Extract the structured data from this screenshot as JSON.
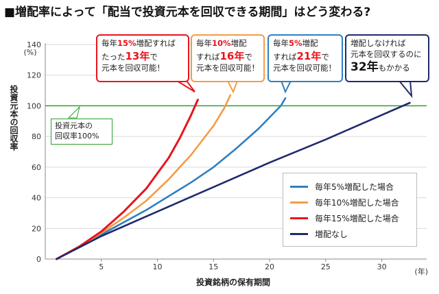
{
  "title": "■増配率によって「配当で投資元本を回収できる期間」はどう変わる?",
  "chart_data": {
    "type": "line",
    "xlabel": "投資銘柄の保有期間",
    "xunit": "(年)",
    "ylabel": "投資元本の回収率",
    "yunit": "(%)",
    "xlim": [
      0,
      34
    ],
    "ylim": [
      0,
      140
    ],
    "xticks": [
      5,
      10,
      15,
      20,
      25,
      30
    ],
    "yticks": [
      0,
      20,
      40,
      60,
      80,
      100,
      120,
      140
    ],
    "grid": "horizontal",
    "legend_position": "bottom-right",
    "reference_line": {
      "y": 100,
      "color": "#2ca02c"
    },
    "series": [
      {
        "name": "毎年5%増配した場合",
        "color": "#2e7fc1",
        "x": [
          1,
          3,
          5,
          7,
          9,
          11,
          13,
          15,
          17,
          19,
          21,
          21.4
        ],
        "y": [
          0,
          8,
          16,
          24,
          32,
          41,
          50,
          60,
          72,
          85,
          100,
          105
        ]
      },
      {
        "name": "毎年10%増配した場合",
        "color": "#f59b42",
        "x": [
          1,
          3,
          5,
          7,
          9,
          11,
          13,
          15,
          16,
          16.5
        ],
        "y": [
          0,
          8,
          17,
          27,
          38,
          52,
          68,
          87,
          99,
          107
        ]
      },
      {
        "name": "毎年15%増配した場合",
        "color": "#e8141c",
        "x": [
          1,
          3,
          5,
          7,
          9,
          11,
          12,
          13,
          13.6
        ],
        "y": [
          0,
          8,
          18,
          31,
          46,
          66,
          79,
          94,
          104
        ]
      },
      {
        "name": "増配なし",
        "color": "#1f2a6b",
        "x": [
          1,
          5,
          10,
          15,
          20,
          25,
          30,
          32.5
        ],
        "y": [
          0,
          15,
          31,
          47,
          63,
          78,
          94,
          102
        ]
      }
    ]
  },
  "callouts": [
    {
      "id": "c15",
      "color": "#e8141c",
      "parts": [
        [
          "毎年",
          ""
        ],
        [
          "15%",
          "red"
        ],
        [
          "増配すれば",
          ""
        ],
        [
          "\n",
          ""
        ],
        [
          "たった",
          ""
        ],
        [
          "13年",
          "redbig"
        ],
        [
          "で",
          ""
        ],
        [
          "\n",
          ""
        ],
        [
          "元本を回収可能！",
          ""
        ]
      ]
    },
    {
      "id": "c10",
      "color": "#f59b42",
      "parts": [
        [
          "毎年",
          ""
        ],
        [
          "10%",
          "red"
        ],
        [
          "増配",
          ""
        ],
        [
          "\n",
          ""
        ],
        [
          "すれば",
          ""
        ],
        [
          "16年",
          "redbig"
        ],
        [
          "で",
          ""
        ],
        [
          "\n",
          ""
        ],
        [
          "元本を回収可能！",
          ""
        ]
      ]
    },
    {
      "id": "c5",
      "color": "#2e7fc1",
      "parts": [
        [
          "毎年",
          ""
        ],
        [
          "5%",
          "red"
        ],
        [
          "増配",
          ""
        ],
        [
          "\n",
          ""
        ],
        [
          "すれば",
          ""
        ],
        [
          "21年",
          "redbig"
        ],
        [
          "で",
          ""
        ],
        [
          "\n",
          ""
        ],
        [
          "元本を回収可能！",
          ""
        ]
      ]
    },
    {
      "id": "c0",
      "color": "#1f2a6b",
      "parts": [
        [
          "増配しなければ",
          ""
        ],
        [
          "\n",
          ""
        ],
        [
          "元本を回収するのに",
          ""
        ],
        [
          "\n",
          ""
        ],
        [
          "32年",
          "bigblack"
        ],
        [
          "もかかる",
          ""
        ]
      ]
    }
  ],
  "goal_note": {
    "line1": "投資元本の",
    "line2": "回収率100%"
  }
}
